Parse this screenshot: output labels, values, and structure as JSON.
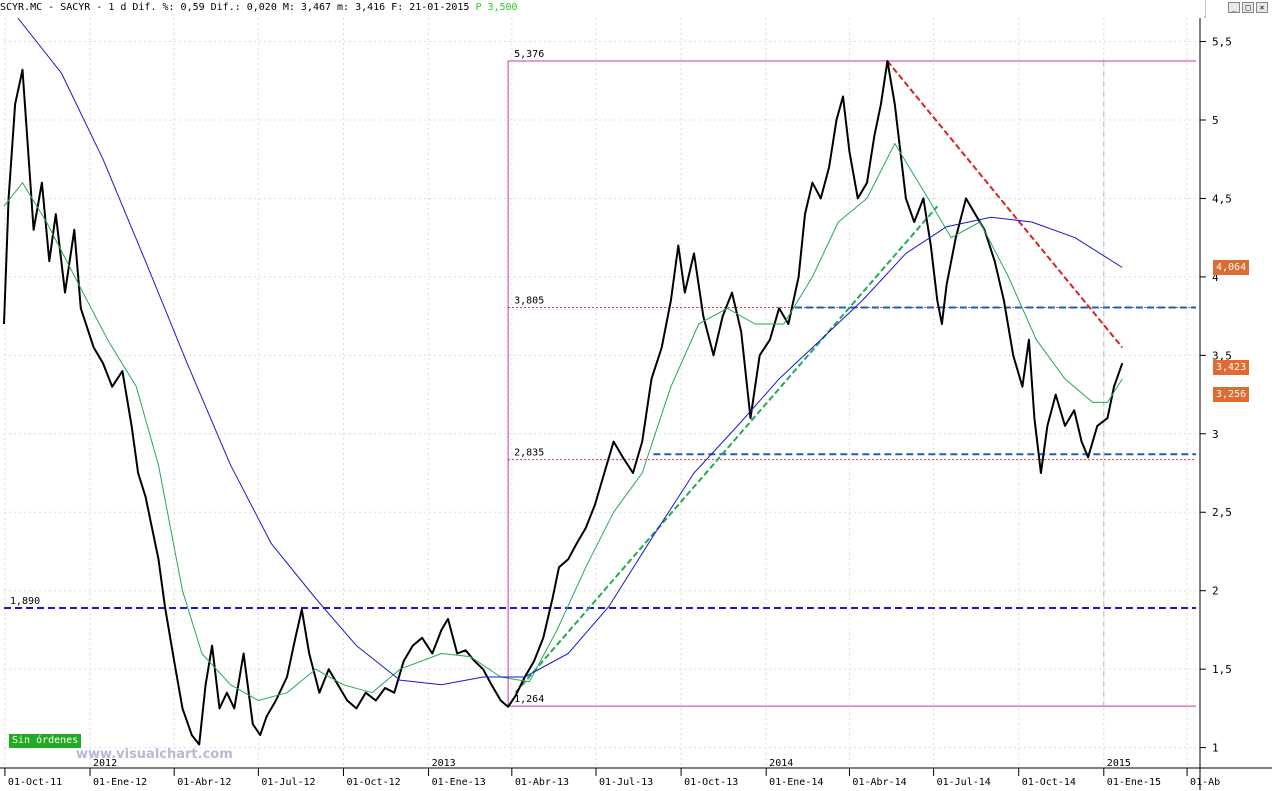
{
  "header": {
    "symbol": "SCYR.MC",
    "name": "SACYR",
    "timeframe": "1 d",
    "dif_pct_label": "Dif. %:",
    "dif_pct": "0,59",
    "dif_label": "Dif.:",
    "dif": "0,020",
    "high_label": "M:",
    "high": "3,467",
    "low_label": "m:",
    "low": "3,416",
    "date_label": "F:",
    "date": "21-01-2015",
    "p_label": "P",
    "p_value": "3,500"
  },
  "window_controls": [
    "_",
    "□",
    "×"
  ],
  "footer": {
    "orders_badge": "Sin órdenes",
    "watermark": "www.visualchart.com"
  },
  "price_tags": [
    {
      "value": "4,064",
      "y": 4.064
    },
    {
      "value": "3,423",
      "y": 3.423
    },
    {
      "value": "3,256",
      "y": 3.256
    }
  ],
  "chart_data": {
    "type": "line",
    "title": "SCYR.MC - SACYR",
    "xlabel": "",
    "ylabel": "",
    "ylim": [
      0.87,
      5.65
    ],
    "xlim": [
      "2011-09-30",
      "2015-04-15"
    ],
    "grid": true,
    "y_ticks": [
      1,
      1.5,
      2,
      2.5,
      3,
      3.5,
      4,
      4.5,
      5,
      5.5
    ],
    "y_tick_labels": [
      "1",
      "1,5",
      "2",
      "2,5",
      "3",
      "3,5",
      "4",
      "4,5",
      "5",
      "5,5"
    ],
    "x_ticks": [
      {
        "date": "2011-10-01",
        "label": "01-Oct-11"
      },
      {
        "date": "2012-01-01",
        "label": "01-Ene-12"
      },
      {
        "date": "2012-04-01",
        "label": "01-Abr-12"
      },
      {
        "date": "2012-07-01",
        "label": "01-Jul-12"
      },
      {
        "date": "2012-10-01",
        "label": "01-Oct-12"
      },
      {
        "date": "2013-01-01",
        "label": "01-Ene-13"
      },
      {
        "date": "2013-04-01",
        "label": "01-Abr-13"
      },
      {
        "date": "2013-07-01",
        "label": "01-Jul-13"
      },
      {
        "date": "2013-10-01",
        "label": "01-Oct-13"
      },
      {
        "date": "2014-01-01",
        "label": "01-Ene-14"
      },
      {
        "date": "2014-04-01",
        "label": "01-Abr-14"
      },
      {
        "date": "2014-07-01",
        "label": "01-Jul-14"
      },
      {
        "date": "2014-10-01",
        "label": "01-Oct-14"
      },
      {
        "date": "2015-01-01",
        "label": "01-Ene-15"
      },
      {
        "date": "2015-04-01",
        "label": "01-Ab"
      }
    ],
    "year_markers": [
      {
        "date": "2012-01-01",
        "label": "2012"
      },
      {
        "date": "2013-01-01",
        "label": "2013"
      },
      {
        "date": "2014-01-01",
        "label": "2014"
      },
      {
        "date": "2015-01-01",
        "label": "2015"
      }
    ],
    "series": [
      {
        "name": "",
        "color": "#000000",
        "points": [
          [
            "2011-09-30",
            3.7
          ],
          [
            "2011-10-05",
            4.5
          ],
          [
            "2011-10-12",
            5.1
          ],
          [
            "2011-10-20",
            5.32
          ],
          [
            "2011-10-25",
            4.9
          ],
          [
            "2011-11-01",
            4.3
          ],
          [
            "2011-11-10",
            4.6
          ],
          [
            "2011-11-18",
            4.1
          ],
          [
            "2011-11-25",
            4.4
          ],
          [
            "2011-12-05",
            3.9
          ],
          [
            "2011-12-15",
            4.3
          ],
          [
            "2011-12-22",
            3.8
          ],
          [
            "2012-01-05",
            3.55
          ],
          [
            "2012-01-15",
            3.45
          ],
          [
            "2012-01-25",
            3.3
          ],
          [
            "2012-02-05",
            3.4
          ],
          [
            "2012-02-15",
            3.05
          ],
          [
            "2012-02-22",
            2.75
          ],
          [
            "2012-03-01",
            2.6
          ],
          [
            "2012-03-08",
            2.4
          ],
          [
            "2012-03-15",
            2.2
          ],
          [
            "2012-03-22",
            1.9
          ],
          [
            "2012-04-01",
            1.55
          ],
          [
            "2012-04-10",
            1.25
          ],
          [
            "2012-04-20",
            1.08
          ],
          [
            "2012-04-28",
            1.02
          ],
          [
            "2012-05-05",
            1.4
          ],
          [
            "2012-05-12",
            1.65
          ],
          [
            "2012-05-20",
            1.25
          ],
          [
            "2012-05-28",
            1.35
          ],
          [
            "2012-06-05",
            1.25
          ],
          [
            "2012-06-15",
            1.6
          ],
          [
            "2012-06-25",
            1.15
          ],
          [
            "2012-07-03",
            1.08
          ],
          [
            "2012-07-10",
            1.2
          ],
          [
            "2012-07-20",
            1.3
          ],
          [
            "2012-08-01",
            1.45
          ],
          [
            "2012-08-10",
            1.7
          ],
          [
            "2012-08-17",
            1.88
          ],
          [
            "2012-08-25",
            1.6
          ],
          [
            "2012-09-05",
            1.35
          ],
          [
            "2012-09-15",
            1.5
          ],
          [
            "2012-09-25",
            1.4
          ],
          [
            "2012-10-05",
            1.3
          ],
          [
            "2012-10-15",
            1.25
          ],
          [
            "2012-10-25",
            1.35
          ],
          [
            "2012-11-05",
            1.3
          ],
          [
            "2012-11-15",
            1.38
          ],
          [
            "2012-11-25",
            1.35
          ],
          [
            "2012-12-05",
            1.55
          ],
          [
            "2012-12-15",
            1.65
          ],
          [
            "2012-12-25",
            1.7
          ],
          [
            "2013-01-05",
            1.6
          ],
          [
            "2013-01-15",
            1.75
          ],
          [
            "2013-01-22",
            1.82
          ],
          [
            "2013-02-01",
            1.6
          ],
          [
            "2013-02-10",
            1.62
          ],
          [
            "2013-02-20",
            1.55
          ],
          [
            "2013-03-01",
            1.5
          ],
          [
            "2013-03-10",
            1.4
          ],
          [
            "2013-03-20",
            1.3
          ],
          [
            "2013-03-28",
            1.26
          ],
          [
            "2013-04-05",
            1.33
          ],
          [
            "2013-04-15",
            1.45
          ],
          [
            "2013-04-25",
            1.55
          ],
          [
            "2013-05-05",
            1.7
          ],
          [
            "2013-05-15",
            1.95
          ],
          [
            "2013-05-22",
            2.15
          ],
          [
            "2013-06-01",
            2.2
          ],
          [
            "2013-06-10",
            2.3
          ],
          [
            "2013-06-20",
            2.4
          ],
          [
            "2013-06-30",
            2.55
          ],
          [
            "2013-07-10",
            2.75
          ],
          [
            "2013-07-20",
            2.95
          ],
          [
            "2013-07-30",
            2.85
          ],
          [
            "2013-08-10",
            2.75
          ],
          [
            "2013-08-20",
            2.95
          ],
          [
            "2013-08-30",
            3.35
          ],
          [
            "2013-09-10",
            3.55
          ],
          [
            "2013-09-20",
            3.85
          ],
          [
            "2013-09-28",
            4.2
          ],
          [
            "2013-10-05",
            3.9
          ],
          [
            "2013-10-15",
            4.15
          ],
          [
            "2013-10-25",
            3.75
          ],
          [
            "2013-11-05",
            3.5
          ],
          [
            "2013-11-15",
            3.75
          ],
          [
            "2013-11-25",
            3.9
          ],
          [
            "2013-12-05",
            3.65
          ],
          [
            "2013-12-15",
            3.1
          ],
          [
            "2013-12-25",
            3.5
          ],
          [
            "2014-01-05",
            3.6
          ],
          [
            "2014-01-15",
            3.8
          ],
          [
            "2014-01-25",
            3.7
          ],
          [
            "2014-02-05",
            4.0
          ],
          [
            "2014-02-12",
            4.4
          ],
          [
            "2014-02-20",
            4.6
          ],
          [
            "2014-03-01",
            4.5
          ],
          [
            "2014-03-10",
            4.7
          ],
          [
            "2014-03-18",
            5.0
          ],
          [
            "2014-03-25",
            5.15
          ],
          [
            "2014-04-01",
            4.8
          ],
          [
            "2014-04-10",
            4.5
          ],
          [
            "2014-04-20",
            4.6
          ],
          [
            "2014-04-28",
            4.9
          ],
          [
            "2014-05-05",
            5.1
          ],
          [
            "2014-05-12",
            5.376
          ],
          [
            "2014-05-20",
            5.1
          ],
          [
            "2014-06-01",
            4.5
          ],
          [
            "2014-06-10",
            4.35
          ],
          [
            "2014-06-20",
            4.5
          ],
          [
            "2014-06-28",
            4.2
          ],
          [
            "2014-07-05",
            3.85
          ],
          [
            "2014-07-10",
            3.7
          ],
          [
            "2014-07-15",
            3.95
          ],
          [
            "2014-07-25",
            4.25
          ],
          [
            "2014-08-05",
            4.5
          ],
          [
            "2014-08-15",
            4.4
          ],
          [
            "2014-08-25",
            4.3
          ],
          [
            "2014-09-05",
            4.1
          ],
          [
            "2014-09-15",
            3.85
          ],
          [
            "2014-09-25",
            3.5
          ],
          [
            "2014-10-05",
            3.3
          ],
          [
            "2014-10-12",
            3.6
          ],
          [
            "2014-10-18",
            3.1
          ],
          [
            "2014-10-25",
            2.75
          ],
          [
            "2014-11-01",
            3.05
          ],
          [
            "2014-11-10",
            3.25
          ],
          [
            "2014-11-20",
            3.05
          ],
          [
            "2014-11-30",
            3.15
          ],
          [
            "2014-12-08",
            2.95
          ],
          [
            "2014-12-15",
            2.85
          ],
          [
            "2014-12-25",
            3.05
          ],
          [
            "2015-01-05",
            3.1
          ],
          [
            "2015-01-12",
            3.3
          ],
          [
            "2015-01-21",
            3.45
          ]
        ]
      },
      {
        "name": "",
        "color": "#22aa55",
        "points": [
          [
            "2011-09-30",
            4.45
          ],
          [
            "2011-10-20",
            4.6
          ],
          [
            "2011-11-15",
            4.35
          ],
          [
            "2011-12-20",
            3.95
          ],
          [
            "2012-01-20",
            3.6
          ],
          [
            "2012-02-20",
            3.3
          ],
          [
            "2012-03-15",
            2.8
          ],
          [
            "2012-04-10",
            2.0
          ],
          [
            "2012-05-01",
            1.6
          ],
          [
            "2012-06-01",
            1.4
          ],
          [
            "2012-07-01",
            1.3
          ],
          [
            "2012-08-01",
            1.35
          ],
          [
            "2012-09-01",
            1.5
          ],
          [
            "2012-10-01",
            1.4
          ],
          [
            "2012-11-01",
            1.35
          ],
          [
            "2012-12-01",
            1.5
          ],
          [
            "2013-01-15",
            1.6
          ],
          [
            "2013-02-15",
            1.58
          ],
          [
            "2013-03-20",
            1.45
          ],
          [
            "2013-04-20",
            1.42
          ],
          [
            "2013-05-20",
            1.75
          ],
          [
            "2013-06-20",
            2.15
          ],
          [
            "2013-07-20",
            2.5
          ],
          [
            "2013-08-20",
            2.75
          ],
          [
            "2013-09-20",
            3.3
          ],
          [
            "2013-10-20",
            3.7
          ],
          [
            "2013-11-20",
            3.8
          ],
          [
            "2013-12-20",
            3.7
          ],
          [
            "2014-01-20",
            3.7
          ],
          [
            "2014-02-20",
            4.0
          ],
          [
            "2014-03-20",
            4.35
          ],
          [
            "2014-04-20",
            4.5
          ],
          [
            "2014-05-20",
            4.85
          ],
          [
            "2014-06-20",
            4.55
          ],
          [
            "2014-07-20",
            4.25
          ],
          [
            "2014-08-20",
            4.35
          ],
          [
            "2014-09-20",
            4.0
          ],
          [
            "2014-10-20",
            3.6
          ],
          [
            "2014-11-20",
            3.35
          ],
          [
            "2014-12-20",
            3.2
          ],
          [
            "2015-01-05",
            3.2
          ],
          [
            "2015-01-21",
            3.35
          ]
        ]
      },
      {
        "name": "",
        "color": "#1a1acc",
        "points": [
          [
            "2011-10-15",
            5.65
          ],
          [
            "2011-12-01",
            5.3
          ],
          [
            "2012-01-15",
            4.75
          ],
          [
            "2012-03-01",
            4.1
          ],
          [
            "2012-04-15",
            3.45
          ],
          [
            "2012-06-01",
            2.8
          ],
          [
            "2012-07-15",
            2.3
          ],
          [
            "2012-09-01",
            1.95
          ],
          [
            "2012-10-15",
            1.65
          ],
          [
            "2012-12-01",
            1.43
          ],
          [
            "2013-01-15",
            1.4
          ],
          [
            "2013-03-01",
            1.45
          ],
          [
            "2013-04-15",
            1.45
          ],
          [
            "2013-06-01",
            1.6
          ],
          [
            "2013-07-15",
            1.9
          ],
          [
            "2013-09-01",
            2.35
          ],
          [
            "2013-10-15",
            2.75
          ],
          [
            "2013-12-01",
            3.05
          ],
          [
            "2014-01-15",
            3.35
          ],
          [
            "2014-03-01",
            3.6
          ],
          [
            "2014-04-15",
            3.85
          ],
          [
            "2014-06-01",
            4.15
          ],
          [
            "2014-07-15",
            4.32
          ],
          [
            "2014-09-01",
            4.38
          ],
          [
            "2014-10-15",
            4.35
          ],
          [
            "2014-12-01",
            4.25
          ],
          [
            "2015-01-21",
            4.06
          ]
        ]
      }
    ],
    "horizontal_lines": [
      {
        "y": 5.376,
        "label": "5,376",
        "color": "#cc33aa",
        "style": "solid",
        "from": "2013-03-28"
      },
      {
        "y": 3.805,
        "label": "3,805",
        "color": "#cc3355",
        "style": "dotted",
        "from": "2013-03-28"
      },
      {
        "y": 3.805,
        "label": "",
        "color": "#1a5fbf",
        "style": "dashed",
        "from": "2014-02-01"
      },
      {
        "y": 2.835,
        "label": "2,835",
        "color": "#cc3355",
        "style": "dotted",
        "from": "2013-03-28"
      },
      {
        "y": 2.87,
        "label": "",
        "color": "#1a5fbf",
        "style": "dashed",
        "from": "2013-09-01"
      },
      {
        "y": 1.89,
        "label": "1,890",
        "color": "#1a1acc",
        "style": "dashed",
        "from": "2011-09-30"
      },
      {
        "y": 1.264,
        "label": "1,264",
        "color": "#cc33aa",
        "style": "solid",
        "from": "2013-03-28"
      }
    ],
    "trend_lines": [
      {
        "from": [
          "2013-04-05",
          1.35
        ],
        "to": [
          "2014-07-05",
          4.45
        ],
        "color": "#22aa55",
        "style": "dashed"
      },
      {
        "from": [
          "2014-05-12",
          5.376
        ],
        "to": [
          "2015-01-21",
          3.55
        ],
        "color": "#dd2222",
        "style": "dashed"
      }
    ],
    "vertical_markers": [
      {
        "date": "2013-03-28",
        "color": "#cc33aa"
      },
      {
        "date": "2015-01-01",
        "color": "#bbbbbb"
      }
    ]
  }
}
